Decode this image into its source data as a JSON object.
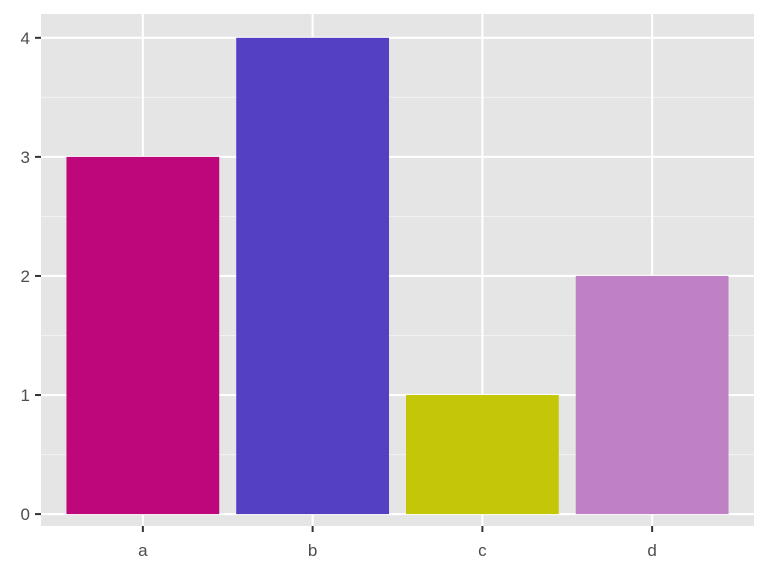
{
  "chart_data": {
    "type": "bar",
    "title": "",
    "xlabel": "",
    "ylabel": "",
    "categories": [
      "a",
      "b",
      "c",
      "d"
    ],
    "values": [
      3,
      4,
      1,
      2
    ],
    "colors": [
      "#BD077B",
      "#5440C2",
      "#C4C707",
      "#C080C6"
    ],
    "ylim": [
      -0.1,
      4.2
    ],
    "yticks": [
      0,
      1,
      2,
      3,
      4
    ],
    "ytick_labels": [
      "0",
      "1",
      "2",
      "3",
      "4"
    ],
    "grid": true,
    "panel_background": "#E5E5E5",
    "legend": "none"
  }
}
